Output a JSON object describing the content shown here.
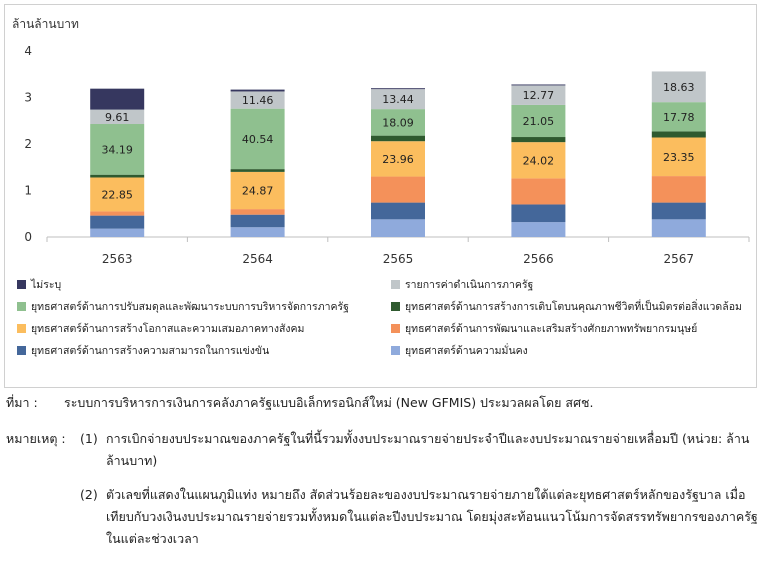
{
  "chart_data": {
    "type": "bar",
    "stacked": true,
    "y_unit_label": "ล้านล้านบาท",
    "ylim": [
      0,
      4
    ],
    "yticks": [
      "0",
      "1",
      "2",
      "3",
      "4"
    ],
    "categories": [
      "2563",
      "2564",
      "2565",
      "2566",
      "2567"
    ],
    "grid": false,
    "legend_position": "bottom",
    "series": [
      {
        "name": "ยุทธศาสตร์ด้านความมั่นคง",
        "color": "#8faadc",
        "values": [
          0.18,
          0.21,
          0.38,
          0.32,
          0.38
        ]
      },
      {
        "name": "ยุทธศาสตร์ด้านการสร้างความสามารถในการแข่งขัน",
        "color": "#44679a",
        "values": [
          0.28,
          0.27,
          0.36,
          0.38,
          0.36
        ]
      },
      {
        "name": "ยุทธศาสตร์ด้านการพัฒนาและเสริมสร้างศักยภาพทรัพยากรมนุษย์",
        "color": "#f4915a",
        "values": [
          0.09,
          0.12,
          0.56,
          0.56,
          0.57
        ]
      },
      {
        "name": "ยุทธศาสตร์ด้านการสร้างโอกาสและความเสมอภาคทางสังคม",
        "color": "#fbbd5e",
        "values": [
          0.73,
          0.8,
          0.76,
          0.78,
          0.83
        ]
      },
      {
        "name": "ยุทธศาสตร์ด้านการสร้างการเติบโตบนคุณภาพชีวิตที่เป็นมิตรต่อสิ่งแวดล้อม",
        "color": "#2f5a2f",
        "values": [
          0.06,
          0.06,
          0.12,
          0.11,
          0.13
        ]
      },
      {
        "name": "ยุทธศาสตร์ด้านการปรับสมดุลและพัฒนาระบบการบริหารจัดการภาครัฐ",
        "color": "#8fc08f",
        "values": [
          1.09,
          1.3,
          0.57,
          0.69,
          0.63
        ]
      },
      {
        "name": "รายการค่าดำเนินการภาครัฐ",
        "color": "#c0c6c9",
        "values": [
          0.31,
          0.37,
          0.43,
          0.42,
          0.66
        ]
      },
      {
        "name": "ไม่ระบุ",
        "color": "#36375f",
        "values": [
          0.45,
          0.04,
          0.02,
          0.02,
          0.0
        ]
      }
    ],
    "data_labels": [
      {
        "category": "2563",
        "series": "ยุทธศาสตร์ด้านการสร้างโอกาสและความเสมอภาคทางสังคม",
        "text": "22.85"
      },
      {
        "category": "2563",
        "series": "ยุทธศาสตร์ด้านการปรับสมดุลและพัฒนาระบบการบริหารจัดการภาครัฐ",
        "text": "34.19"
      },
      {
        "category": "2563",
        "series": "รายการค่าดำเนินการภาครัฐ",
        "text": "9.61"
      },
      {
        "category": "2564",
        "series": "ยุทธศาสตร์ด้านการสร้างโอกาสและความเสมอภาคทางสังคม",
        "text": "24.87"
      },
      {
        "category": "2564",
        "series": "ยุทธศาสตร์ด้านการปรับสมดุลและพัฒนาระบบการบริหารจัดการภาครัฐ",
        "text": "40.54"
      },
      {
        "category": "2564",
        "series": "รายการค่าดำเนินการภาครัฐ",
        "text": "11.46"
      },
      {
        "category": "2565",
        "series": "ยุทธศาสตร์ด้านการสร้างโอกาสและความเสมอภาคทางสังคม",
        "text": "23.96"
      },
      {
        "category": "2565",
        "series": "ยุทธศาสตร์ด้านการปรับสมดุลและพัฒนาระบบการบริหารจัดการภาครัฐ",
        "text": "18.09"
      },
      {
        "category": "2565",
        "series": "รายการค่าดำเนินการภาครัฐ",
        "text": "13.44"
      },
      {
        "category": "2566",
        "series": "ยุทธศาสตร์ด้านการสร้างโอกาสและความเสมอภาคทางสังคม",
        "text": "24.02"
      },
      {
        "category": "2566",
        "series": "ยุทธศาสตร์ด้านการปรับสมดุลและพัฒนาระบบการบริหารจัดการภาครัฐ",
        "text": "21.05"
      },
      {
        "category": "2566",
        "series": "รายการค่าดำเนินการภาครัฐ",
        "text": "12.77"
      },
      {
        "category": "2567",
        "series": "ยุทธศาสตร์ด้านการสร้างโอกาสและความเสมอภาคทางสังคม",
        "text": "23.35"
      },
      {
        "category": "2567",
        "series": "ยุทธศาสตร์ด้านการปรับสมดุลและพัฒนาระบบการบริหารจัดการภาครัฐ",
        "text": "17.78"
      },
      {
        "category": "2567",
        "series": "รายการค่าดำเนินการภาครัฐ",
        "text": "18.63"
      }
    ],
    "legend_order": [
      "ไม่ระบุ",
      "รายการค่าดำเนินการภาครัฐ",
      "ยุทธศาสตร์ด้านการปรับสมดุลและพัฒนาระบบการบริหารจัดการภาครัฐ",
      "ยุทธศาสตร์ด้านการสร้างการเติบโตบนคุณภาพชีวิตที่เป็นมิตรต่อสิ่งแวดล้อม",
      "ยุทธศาสตร์ด้านการสร้างโอกาสและความเสมอภาคทางสังคม",
      "ยุทธศาสตร์ด้านการพัฒนาและเสริมสร้างศักยภาพทรัพยากรมนุษย์",
      "ยุทธศาสตร์ด้านการสร้างความสามารถในการแข่งขัน",
      "ยุทธศาสตร์ด้านความมั่นคง"
    ]
  },
  "notes": {
    "source_label": "ที่มา :",
    "source_text": "ระบบการบริหารการเงินการคลังภาครัฐแบบอิเล็กทรอนิกส์ใหม่ (New GFMIS) ประมวลผลโดย สศช.",
    "remark_label": "หมายเหตุ :",
    "remark_1_num": "(1)",
    "remark_1_text": "การเบิกจ่ายงบประมาณของภาครัฐในที่นี้รวมทั้งงบประมาณรายจ่ายประจำปีและงบประมาณรายจ่ายเหลื่อมปี (หน่วย: ล้านล้านบาท)",
    "remark_2_num": "(2)",
    "remark_2_text": "ตัวเลขที่แสดงในแผนภูมิแท่ง หมายถึง สัดส่วนร้อยละของงบประมาณรายจ่ายภายใต้แต่ละยุทธศาสตร์หลักของรัฐบาล เมื่อเทียบกับวงเงินงบประมาณรายจ่ายรวมทั้งหมดในแต่ละปีงบประมาณ โดยมุ่งสะท้อนแนวโน้มการจัดสรรทรัพยากรของภาครัฐในแต่ละช่วงเวลา"
  }
}
